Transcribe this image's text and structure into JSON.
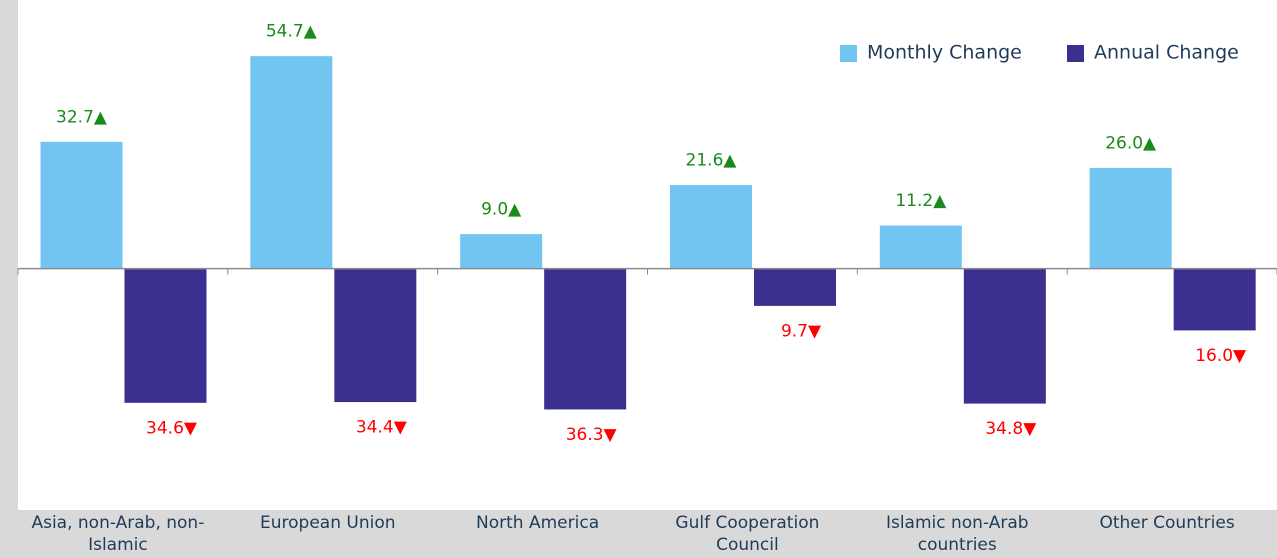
{
  "chart_data": {
    "type": "bar",
    "categories": [
      "Asia, non-Arab, non-Islamic",
      "European Union",
      "North America",
      "Gulf Cooperation Council",
      "Islamic non-Arab countries",
      "Other Countries"
    ],
    "series": [
      {
        "name": "Monthly Change",
        "color": "#72c5f0",
        "values": [
          32.7,
          54.7,
          9.0,
          21.6,
          11.2,
          26.0
        ],
        "value_labels": [
          "32.7▲",
          "54.7▲",
          "9.0▲",
          "21.6▲",
          "11.2▲",
          "26.0▲"
        ],
        "label_color": "#1a8a1a"
      },
      {
        "name": "Annual Change",
        "color": "#3b2f8f",
        "values": [
          -34.6,
          -34.4,
          -36.3,
          -9.7,
          -34.8,
          -16.0
        ],
        "value_labels": [
          "34.6▼",
          "34.4▼",
          "36.3▼",
          "9.7▼",
          "34.8▼",
          "16.0▼"
        ],
        "label_color": "#ff0000"
      }
    ],
    "ylim": [
      -62,
      69
    ],
    "legend": "top-right"
  }
}
